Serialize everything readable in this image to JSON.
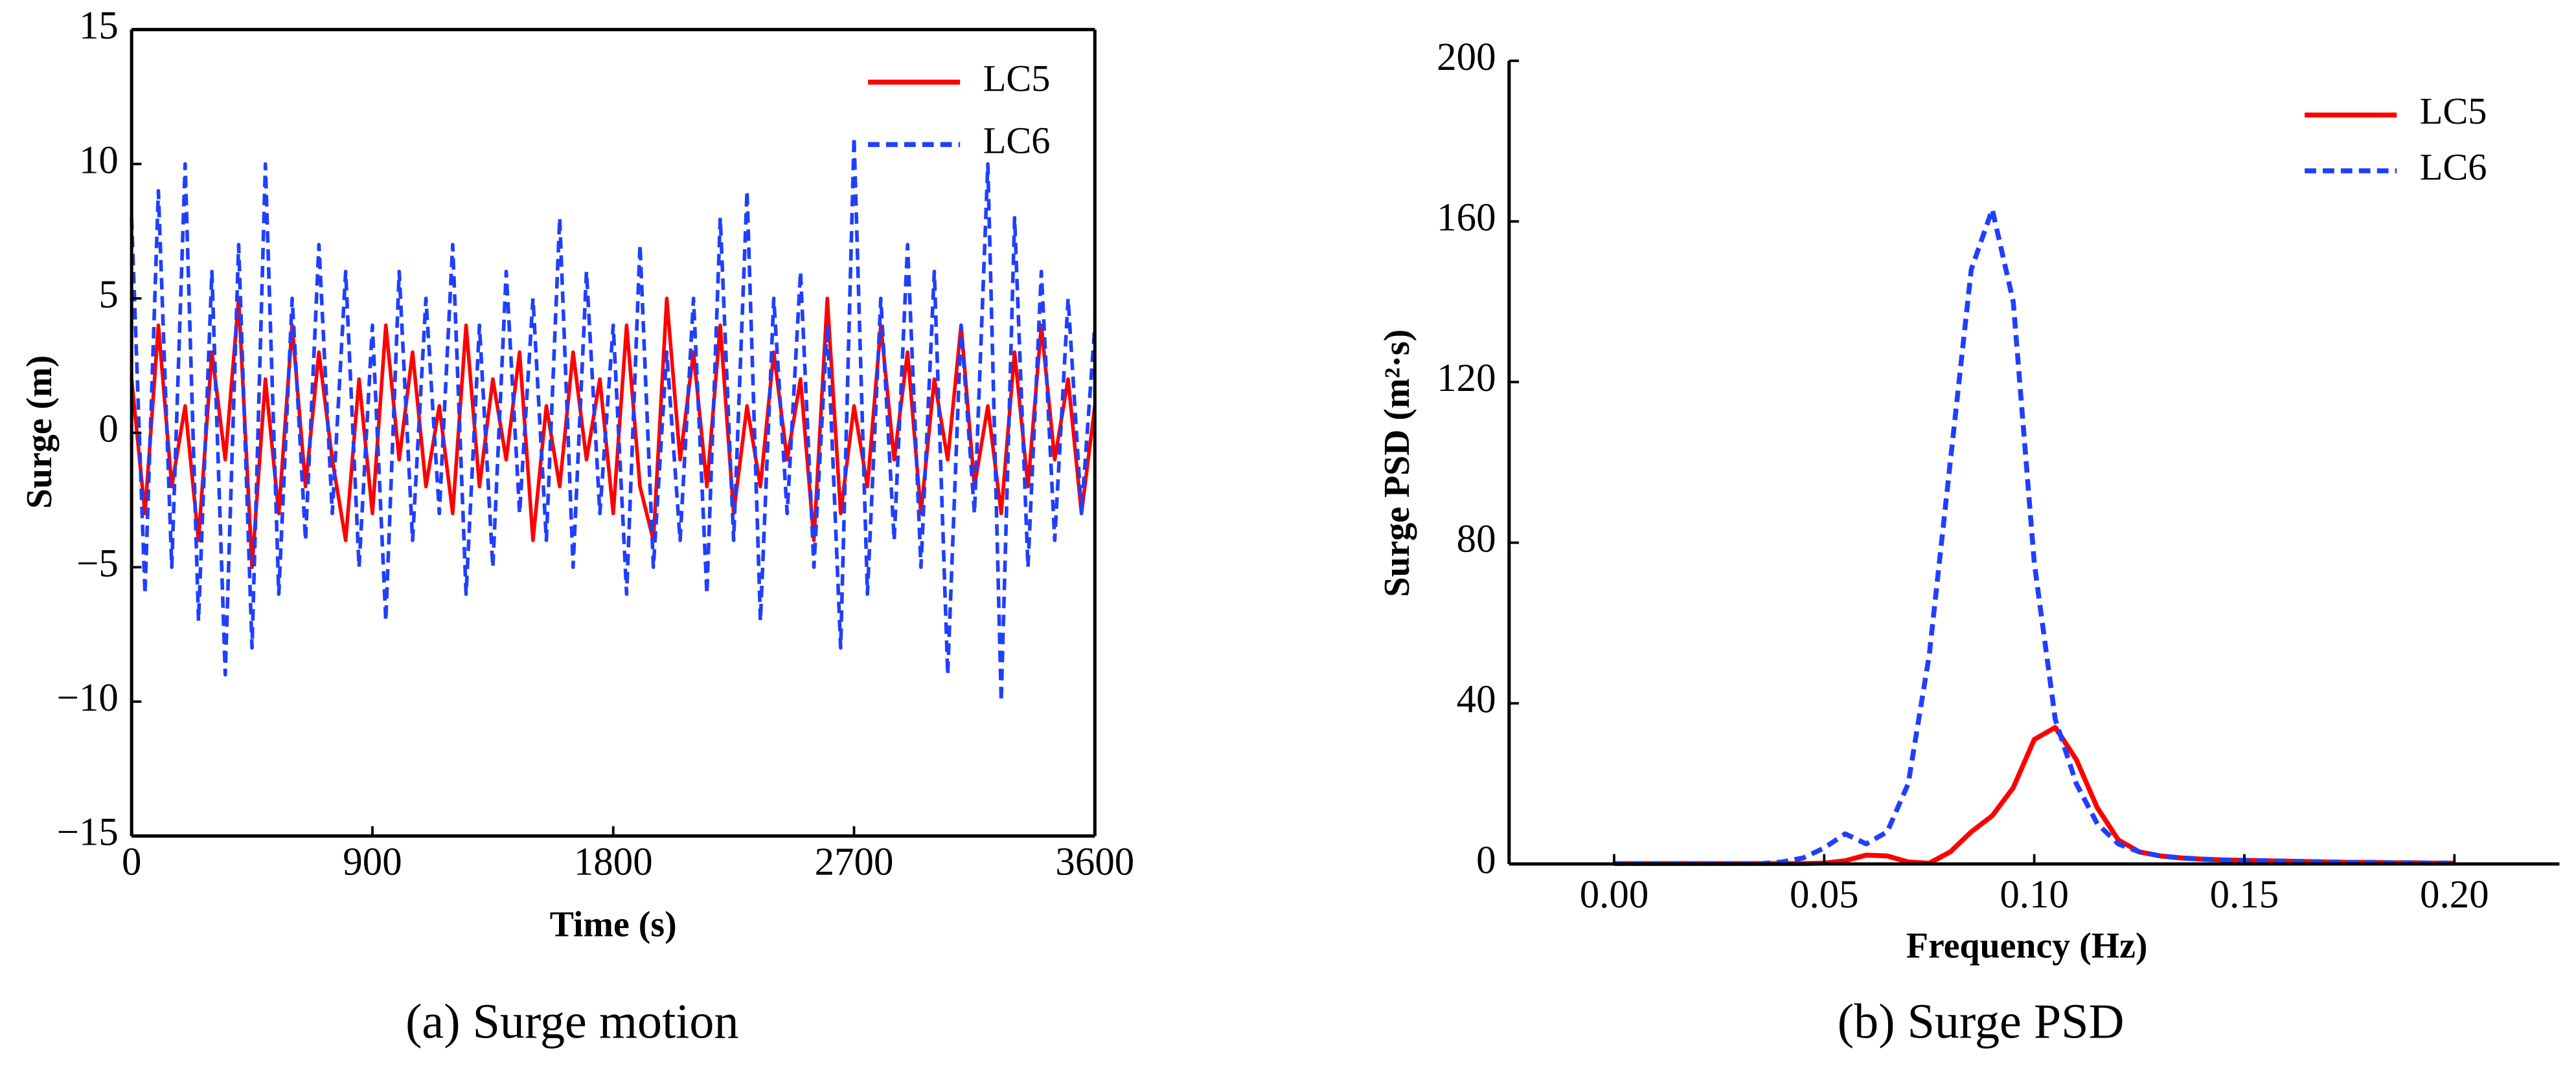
{
  "chart_data": [
    {
      "type": "line",
      "xlabel": "Time (s)",
      "ylabel": "Surge (m)",
      "caption": "(a) Surge motion",
      "x": [
        0,
        50,
        100,
        150,
        200,
        250,
        300,
        350,
        400,
        450,
        500,
        550,
        600,
        650,
        700,
        750,
        800,
        850,
        900,
        950,
        1000,
        1050,
        1100,
        1150,
        1200,
        1250,
        1300,
        1350,
        1400,
        1450,
        1500,
        1550,
        1600,
        1650,
        1700,
        1750,
        1800,
        1850,
        1900,
        1950,
        2000,
        2050,
        2100,
        2150,
        2200,
        2250,
        2300,
        2350,
        2400,
        2450,
        2500,
        2550,
        2600,
        2650,
        2700,
        2750,
        2800,
        2850,
        2900,
        2950,
        3000,
        3050,
        3100,
        3150,
        3200,
        3250,
        3300,
        3350,
        3400,
        3450,
        3500,
        3550,
        3600
      ],
      "series": [
        {
          "name": "LC5",
          "color": "#ff0000",
          "dash": "solid",
          "values": [
            2,
            -3,
            4,
            -2,
            1,
            -4,
            3,
            -1,
            5,
            -5,
            2,
            -3,
            4,
            -2,
            3,
            -1,
            -4,
            2,
            -3,
            4,
            -1,
            3,
            -2,
            1,
            -3,
            4,
            -2,
            2,
            -1,
            3,
            -4,
            1,
            -2,
            3,
            -1,
            2,
            -3,
            4,
            -2,
            -4,
            5,
            -1,
            3,
            -2,
            4,
            -3,
            1,
            -2,
            3,
            -1,
            2,
            -4,
            5,
            -3,
            1,
            -2,
            4,
            -1,
            3,
            -3,
            2,
            -1,
            4,
            -2,
            1,
            -3,
            3,
            -2,
            4,
            -1,
            2,
            -3,
            1
          ]
        },
        {
          "name": "LC6",
          "color": "#1f3fff",
          "dash": "dashed",
          "values": [
            8,
            -6,
            9,
            -5,
            10,
            -7,
            6,
            -9,
            7,
            -8,
            10,
            -6,
            5,
            -4,
            7,
            -3,
            6,
            -5,
            4,
            -7,
            6,
            -4,
            5,
            -3,
            7,
            -6,
            4,
            -5,
            6,
            -3,
            5,
            -4,
            8,
            -5,
            6,
            -3,
            4,
            -6,
            7,
            -5,
            3,
            -4,
            5,
            -6,
            8,
            -4,
            9,
            -7,
            5,
            -3,
            6,
            -5,
            4,
            -8,
            11,
            -6,
            5,
            -4,
            7,
            -5,
            6,
            -9,
            4,
            -3,
            10,
            -10,
            8,
            -5,
            6,
            -4,
            5,
            -3,
            4
          ]
        }
      ],
      "xlim": [
        0,
        3600
      ],
      "xticks": [
        0,
        900,
        1800,
        2700,
        3600
      ],
      "ylim": [
        -15,
        15
      ],
      "yticks": [
        {
          "value": -15,
          "label": "−15"
        },
        {
          "value": -10,
          "label": "−10"
        },
        {
          "value": -5,
          "label": "−5"
        },
        0,
        5,
        10,
        15
      ],
      "legend": "upper right"
    },
    {
      "type": "line",
      "xlabel": "Frequency (Hz)",
      "ylabel": "Surge PSD (m²·s)",
      "caption": "(b) Surge PSD",
      "x": [
        0,
        0.005,
        0.01,
        0.015,
        0.02,
        0.025,
        0.03,
        0.035,
        0.04,
        0.045,
        0.05,
        0.055,
        0.06,
        0.065,
        0.07,
        0.075,
        0.08,
        0.085,
        0.09,
        0.095,
        0.1,
        0.105,
        0.11,
        0.115,
        0.12,
        0.125,
        0.13,
        0.135,
        0.14,
        0.145,
        0.15,
        0.155,
        0.16,
        0.165,
        0.17,
        0.175,
        0.18,
        0.185,
        0.19,
        0.195,
        0.2
      ],
      "series": [
        {
          "name": "LC5",
          "color": "#ff0000",
          "dash": "solid",
          "values": [
            0.1,
            0.1,
            0.1,
            0.1,
            0.1,
            0.1,
            0.1,
            0.1,
            0.1,
            0.1,
            0.2,
            0.8,
            2.2,
            2.0,
            0.5,
            0.2,
            3,
            8,
            12,
            19,
            31,
            34,
            26,
            14,
            6,
            3,
            2,
            1.5,
            1.2,
            1,
            0.9,
            0.8,
            0.7,
            0.6,
            0.5,
            0.4,
            0.4,
            0.3,
            0.3,
            0.2,
            0.2
          ]
        },
        {
          "name": "LC6",
          "color": "#1f3fff",
          "dash": "dashed",
          "values": [
            0.1,
            0.1,
            0.1,
            0.1,
            0.1,
            0.1,
            0.1,
            0.1,
            0.5,
            1.5,
            4,
            7.5,
            5,
            8,
            20,
            52,
            100,
            148,
            163,
            140,
            75,
            36,
            20,
            10,
            5,
            3,
            2,
            1.5,
            1.2,
            1,
            0.9,
            0.8,
            0.7,
            0.6,
            0.5,
            0.4,
            0.4,
            0.3,
            0.3,
            0.2,
            0.2
          ]
        }
      ],
      "xlim": [
        -0.025,
        0.225
      ],
      "xticks": [
        {
          "value": 0,
          "label": "0.00"
        },
        {
          "value": 0.05,
          "label": "0.05"
        },
        {
          "value": 0.1,
          "label": "0.10"
        },
        {
          "value": 0.15,
          "label": "0.15"
        },
        {
          "value": 0.2,
          "label": "0.20"
        }
      ],
      "ylim": [
        0,
        200
      ],
      "yticks": [
        0,
        40,
        80,
        120,
        160,
        200
      ],
      "legend": "upper right"
    }
  ]
}
